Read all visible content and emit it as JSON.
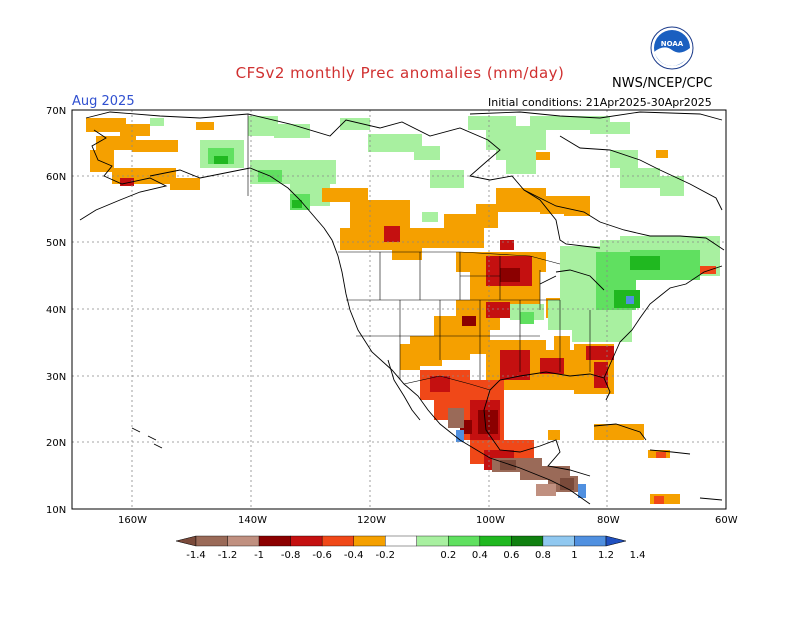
{
  "header": {
    "title": "CFSv2 monthly Prec anomalies (mm/day)",
    "agency": "NWS/NCEP/CPC",
    "logo_text": "NOAA",
    "month": "Aug 2025",
    "initial_conditions": "Initial conditions: 21Apr2025-30Apr2025"
  },
  "axes": {
    "lat_labels": [
      "70N",
      "60N",
      "50N",
      "40N",
      "30N",
      "20N",
      "10N"
    ],
    "lon_labels": [
      "160W",
      "140W",
      "120W",
      "100W",
      "80W",
      "60W"
    ]
  },
  "colorbar": {
    "labels": [
      "-1.4",
      "-1.2",
      "-1",
      "-0.8",
      "-0.6",
      "-0.4",
      "-0.2",
      "0.2",
      "0.4",
      "0.6",
      "0.8",
      "1",
      "1.2",
      "1.4"
    ],
    "colors": [
      "#7a4a3a",
      "#9a6a58",
      "#c09080",
      "#8b0000",
      "#c41010",
      "#f04818",
      "#f5a000",
      "#ffffff",
      "#a8f0a0",
      "#60e060",
      "#20b820",
      "#108010",
      "#90c8f0",
      "#5090e0",
      "#2050c0"
    ]
  }
}
